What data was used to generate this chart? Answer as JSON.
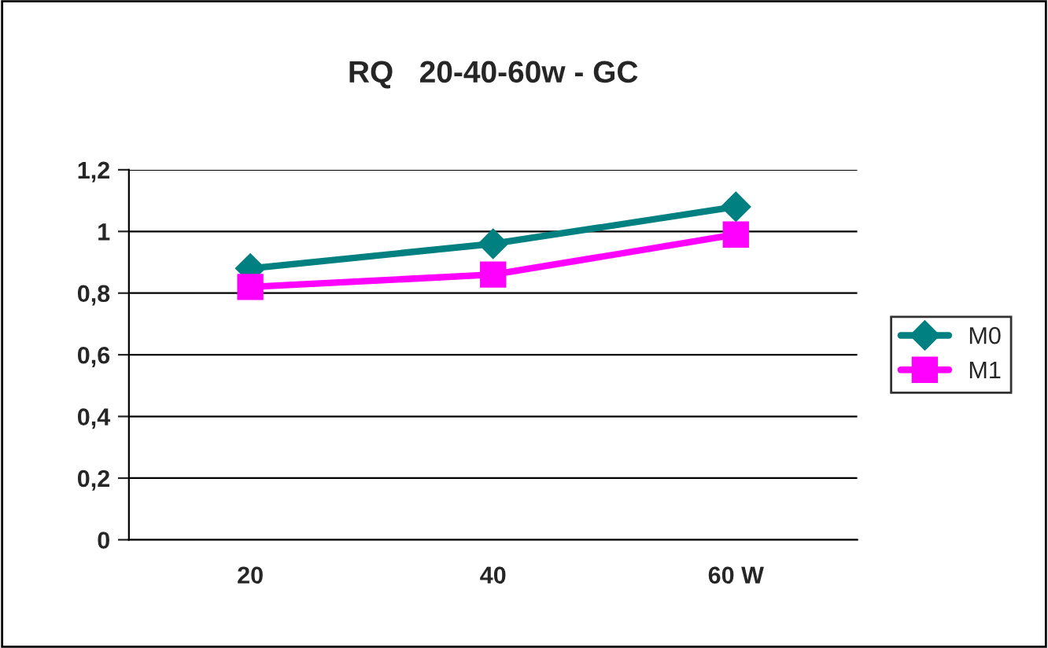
{
  "chart_data": {
    "type": "line",
    "title": "RQ   20-40-60w - GC",
    "categories": [
      "20",
      "40",
      "60 W"
    ],
    "series": [
      {
        "name": "M0",
        "color": "#008080",
        "values": [
          0.88,
          0.96,
          1.08
        ],
        "marker": "diamond"
      },
      {
        "name": "M1",
        "color": "#ff00ff",
        "values": [
          0.82,
          0.86,
          0.99
        ],
        "marker": "square"
      }
    ],
    "ylim": [
      0,
      1.2
    ],
    "yticks": [
      0,
      {
        "value": 0.2,
        "label": "0,2"
      },
      {
        "value": 0.4,
        "label": "0,4"
      },
      {
        "value": 0.6,
        "label": "0,6"
      },
      {
        "value": 0.8,
        "label": "0,8"
      },
      1,
      {
        "value": 1.2,
        "label": "1,2"
      }
    ],
    "grid": "y",
    "legend": "right",
    "line_style": "solid"
  }
}
